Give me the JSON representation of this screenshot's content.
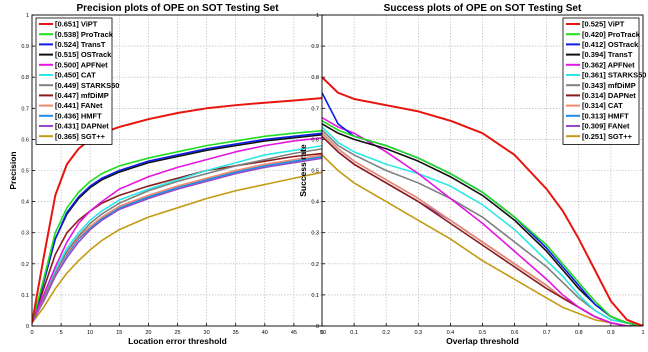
{
  "chart_data": [
    {
      "type": "line",
      "title": "Precision plots of OPE on SOT Testing Set",
      "xlabel": "Location error threshold",
      "ylabel": "Precision",
      "xlim": [
        0,
        50
      ],
      "ylim": [
        0,
        1
      ],
      "xticks": [
        "0",
        "5",
        "10",
        "15",
        "20",
        "25",
        "30",
        "35",
        "40",
        "45",
        "50"
      ],
      "yticks": [
        "0",
        "0.1",
        "0.2",
        "0.3",
        "0.4",
        "0.5",
        "0.6",
        "0.7",
        "0.8",
        "0.9",
        "1"
      ],
      "grid": true,
      "legend_position": "top-left",
      "x": [
        0,
        2,
        4,
        6,
        8,
        10,
        12,
        15,
        20,
        25,
        30,
        35,
        40,
        45,
        50
      ],
      "series": [
        {
          "name": "[0.651] ViPT",
          "color": "#e8150f",
          "values": [
            0.01,
            0.22,
            0.42,
            0.52,
            0.57,
            0.6,
            0.62,
            0.64,
            0.665,
            0.685,
            0.7,
            0.71,
            0.718,
            0.725,
            0.733
          ]
        },
        {
          "name": "[0.538] ProTrack",
          "color": "#1fdd1f",
          "values": [
            0.01,
            0.15,
            0.3,
            0.38,
            0.43,
            0.465,
            0.49,
            0.515,
            0.54,
            0.56,
            0.58,
            0.595,
            0.61,
            0.62,
            0.628
          ]
        },
        {
          "name": "[0.524] TransT",
          "color": "#0c1ee6",
          "values": [
            0.01,
            0.14,
            0.28,
            0.365,
            0.415,
            0.45,
            0.475,
            0.5,
            0.53,
            0.55,
            0.57,
            0.585,
            0.6,
            0.61,
            0.62
          ]
        },
        {
          "name": "[0.515] OSTrack",
          "color": "#111111",
          "values": [
            0.01,
            0.14,
            0.28,
            0.36,
            0.41,
            0.445,
            0.47,
            0.495,
            0.525,
            0.545,
            0.565,
            0.58,
            0.595,
            0.605,
            0.615
          ]
        },
        {
          "name": "[0.500] APFNet",
          "color": "#e316e3",
          "values": [
            0.01,
            0.1,
            0.19,
            0.27,
            0.33,
            0.37,
            0.4,
            0.44,
            0.48,
            0.51,
            0.535,
            0.56,
            0.58,
            0.595,
            0.605
          ]
        },
        {
          "name": "[0.450] CAT",
          "color": "#2ee8e8",
          "values": [
            0.01,
            0.1,
            0.18,
            0.25,
            0.3,
            0.34,
            0.37,
            0.405,
            0.44,
            0.47,
            0.5,
            0.525,
            0.55,
            0.565,
            0.58
          ]
        },
        {
          "name": "[0.449] STARKS50",
          "color": "#808080",
          "values": [
            0.01,
            0.09,
            0.17,
            0.24,
            0.29,
            0.33,
            0.36,
            0.395,
            0.435,
            0.465,
            0.49,
            0.515,
            0.535,
            0.555,
            0.57
          ]
        },
        {
          "name": "[0.447] mfDiMP",
          "color": "#8b1c1c",
          "values": [
            0.01,
            0.12,
            0.23,
            0.3,
            0.34,
            0.37,
            0.395,
            0.42,
            0.45,
            0.475,
            0.5,
            0.515,
            0.53,
            0.545,
            0.555
          ]
        },
        {
          "name": "[0.441] FANet",
          "color": "#f08a6c",
          "values": [
            0.01,
            0.09,
            0.17,
            0.235,
            0.285,
            0.32,
            0.35,
            0.385,
            0.42,
            0.45,
            0.475,
            0.5,
            0.52,
            0.535,
            0.55
          ]
        },
        {
          "name": "[0.436] HMFT",
          "color": "#1e8ee6",
          "values": [
            0.01,
            0.09,
            0.17,
            0.23,
            0.28,
            0.315,
            0.345,
            0.38,
            0.415,
            0.445,
            0.47,
            0.495,
            0.515,
            0.53,
            0.545
          ]
        },
        {
          "name": "[0.431] DAPNet",
          "color": "#9a47c4",
          "values": [
            0.01,
            0.08,
            0.16,
            0.22,
            0.27,
            0.31,
            0.34,
            0.375,
            0.41,
            0.44,
            0.465,
            0.49,
            0.51,
            0.525,
            0.54
          ]
        },
        {
          "name": "[0.365] SGT++",
          "color": "#c49a14",
          "values": [
            0.01,
            0.06,
            0.12,
            0.17,
            0.21,
            0.245,
            0.275,
            0.31,
            0.35,
            0.38,
            0.41,
            0.435,
            0.455,
            0.475,
            0.495
          ]
        }
      ]
    },
    {
      "type": "line",
      "title": "Success plots of OPE on SOT Testing Set",
      "xlabel": "Overlap threshold",
      "ylabel": "Success rate",
      "xlim": [
        0,
        1
      ],
      "ylim": [
        0,
        1
      ],
      "xticks": [
        "0",
        "0.1",
        "0.2",
        "0.3",
        "0.4",
        "0.5",
        "0.6",
        "0.7",
        "0.8",
        "0.9",
        "1"
      ],
      "yticks": [
        "0",
        "0.1",
        "0.2",
        "0.3",
        "0.4",
        "0.5",
        "0.6",
        "0.7",
        "0.8",
        "0.9",
        "1"
      ],
      "grid": true,
      "legend_position": "top-right",
      "x": [
        0,
        0.05,
        0.1,
        0.2,
        0.3,
        0.4,
        0.5,
        0.6,
        0.7,
        0.75,
        0.8,
        0.85,
        0.9,
        0.95,
        1.0
      ],
      "series": [
        {
          "name": "[0.525] ViPT",
          "color": "#e8150f",
          "values": [
            0.8,
            0.75,
            0.73,
            0.71,
            0.69,
            0.66,
            0.62,
            0.55,
            0.44,
            0.37,
            0.28,
            0.18,
            0.08,
            0.02,
            0.0
          ]
        },
        {
          "name": "[0.420] ProTrack",
          "color": "#1fdd1f",
          "values": [
            0.66,
            0.63,
            0.61,
            0.58,
            0.54,
            0.49,
            0.43,
            0.35,
            0.26,
            0.2,
            0.14,
            0.08,
            0.03,
            0.01,
            0.0
          ]
        },
        {
          "name": "[0.412] OSTrack",
          "color": "#0c1ee6",
          "values": [
            0.75,
            0.65,
            0.61,
            0.58,
            0.54,
            0.49,
            0.43,
            0.35,
            0.25,
            0.19,
            0.13,
            0.07,
            0.03,
            0.01,
            0.0
          ]
        },
        {
          "name": "[0.394] TransT",
          "color": "#111111",
          "values": [
            0.65,
            0.62,
            0.6,
            0.57,
            0.53,
            0.48,
            0.42,
            0.34,
            0.24,
            0.18,
            0.12,
            0.07,
            0.03,
            0.01,
            0.0
          ]
        },
        {
          "name": "[0.362] APFNet",
          "color": "#e316e3",
          "values": [
            0.67,
            0.64,
            0.62,
            0.56,
            0.49,
            0.41,
            0.33,
            0.24,
            0.15,
            0.1,
            0.06,
            0.03,
            0.01,
            0.0,
            0.0
          ]
        },
        {
          "name": "[0.361] STARKS50",
          "color": "#2ee8e8",
          "values": [
            0.64,
            0.59,
            0.56,
            0.52,
            0.49,
            0.45,
            0.39,
            0.31,
            0.21,
            0.16,
            0.1,
            0.05,
            0.02,
            0.01,
            0.0
          ]
        },
        {
          "name": "[0.343] mfDiMP",
          "color": "#808080",
          "values": [
            0.63,
            0.58,
            0.55,
            0.5,
            0.46,
            0.41,
            0.35,
            0.27,
            0.19,
            0.14,
            0.09,
            0.05,
            0.02,
            0.01,
            0.0
          ]
        },
        {
          "name": "[0.314] DAPNet",
          "color": "#8b1c1c",
          "values": [
            0.61,
            0.56,
            0.52,
            0.46,
            0.4,
            0.33,
            0.26,
            0.19,
            0.12,
            0.09,
            0.06,
            0.03,
            0.01,
            0.0,
            0.0
          ]
        },
        {
          "name": "[0.314] CAT",
          "color": "#f08a6c",
          "values": [
            0.62,
            0.57,
            0.53,
            0.47,
            0.41,
            0.34,
            0.27,
            0.2,
            0.13,
            0.09,
            0.06,
            0.03,
            0.01,
            0.0,
            0.0
          ]
        },
        {
          "name": "[0.313] HMFT",
          "color": "#1e8ee6",
          "values": [
            0.62,
            0.57,
            0.53,
            0.47,
            0.41,
            0.34,
            0.27,
            0.2,
            0.13,
            0.09,
            0.06,
            0.03,
            0.01,
            0.0,
            0.0
          ]
        },
        {
          "name": "[0.309] FANet",
          "color": "#9a47c4",
          "values": [
            0.61,
            0.56,
            0.52,
            0.46,
            0.4,
            0.34,
            0.27,
            0.2,
            0.13,
            0.09,
            0.06,
            0.03,
            0.01,
            0.0,
            0.0
          ]
        },
        {
          "name": "[0.251] SGT++",
          "color": "#c49a14",
          "values": [
            0.55,
            0.5,
            0.46,
            0.4,
            0.34,
            0.28,
            0.21,
            0.15,
            0.09,
            0.06,
            0.04,
            0.02,
            0.01,
            0.0,
            0.0
          ]
        }
      ]
    }
  ]
}
